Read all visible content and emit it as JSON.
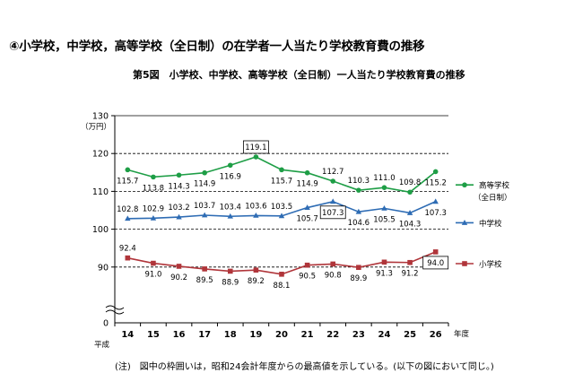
{
  "section_title": "④小学校，中学校，高等学校（全日制）の在学者一人当たり学校教育費の推移",
  "figure_title": "第5図　小学校、中学校、高等学校（全日制）一人当たり学校教育費の推移",
  "note": "(注)　図中の枠囲いは，昭和24会計年度からの最高値を示している。(以下の図において同じ。)",
  "colors": {
    "high": "#1e9e46",
    "middle": "#2e6cb4",
    "elementary": "#b0353a",
    "grid": "#000000"
  },
  "chart_data": {
    "type": "line",
    "title": "",
    "xlabel": "年度",
    "x_prefix": "平成",
    "ylabel": "（万円）",
    "ylim": [
      80,
      130
    ],
    "y_ticks": [
      90,
      100,
      110,
      120,
      130
    ],
    "y_zero_label": "0",
    "axis_break": true,
    "dashed_grid_at": [
      90,
      100,
      110,
      120
    ],
    "legend_position": "right",
    "x": [
      "14",
      "15",
      "16",
      "17",
      "18",
      "19",
      "20",
      "21",
      "22",
      "23",
      "24",
      "25",
      "26"
    ],
    "series": [
      {
        "name": "高等学校",
        "name_sub": "（全日制）",
        "key": "high",
        "marker": "circle",
        "values": [
          115.7,
          113.8,
          114.3,
          114.9,
          116.9,
          119.1,
          115.7,
          114.9,
          112.7,
          110.3,
          111.0,
          109.8,
          115.2
        ],
        "labels": [
          "115.7",
          "113.8",
          "114.3",
          "114.9",
          "116.9",
          "119.1",
          "115.7",
          "114.9",
          "112.7",
          "110.3",
          "111.0",
          "109.8",
          "115.2"
        ],
        "label_pos": [
          "below",
          "below",
          "below",
          "below",
          "below",
          "above",
          "below",
          "below",
          "above",
          "above",
          "above",
          "above",
          "below"
        ],
        "highlight_index": 5
      },
      {
        "name": "中学校",
        "key": "middle",
        "marker": "triangle",
        "values": [
          102.8,
          102.9,
          103.2,
          103.7,
          103.4,
          103.6,
          103.5,
          105.7,
          107.3,
          104.6,
          105.5,
          104.3,
          107.3
        ],
        "labels": [
          "102.8",
          "102.9",
          "103.2",
          "103.7",
          "103.4",
          "103.6",
          "103.5",
          "105.7",
          "107.3",
          "104.6",
          "105.5",
          "104.3",
          "107.3"
        ],
        "label_pos": [
          "above",
          "above",
          "above",
          "above",
          "above",
          "above",
          "above",
          "below",
          "below",
          "below",
          "below",
          "below",
          "below"
        ],
        "highlight_index": 8
      },
      {
        "name": "小学校",
        "key": "elementary",
        "marker": "square",
        "values": [
          92.4,
          91.0,
          90.2,
          89.5,
          88.9,
          89.2,
          88.1,
          90.5,
          90.8,
          89.9,
          91.3,
          91.2,
          94.0
        ],
        "labels": [
          "92.4",
          "91.0",
          "90.2",
          "89.5",
          "88.9",
          "89.2",
          "88.1",
          "90.5",
          "90.8",
          "89.9",
          "91.3",
          "91.2",
          "94.0"
        ],
        "label_pos": [
          "above",
          "below",
          "below",
          "below",
          "below",
          "below",
          "below",
          "below",
          "below",
          "below",
          "below",
          "below",
          "below"
        ],
        "highlight_index": 12
      }
    ]
  }
}
